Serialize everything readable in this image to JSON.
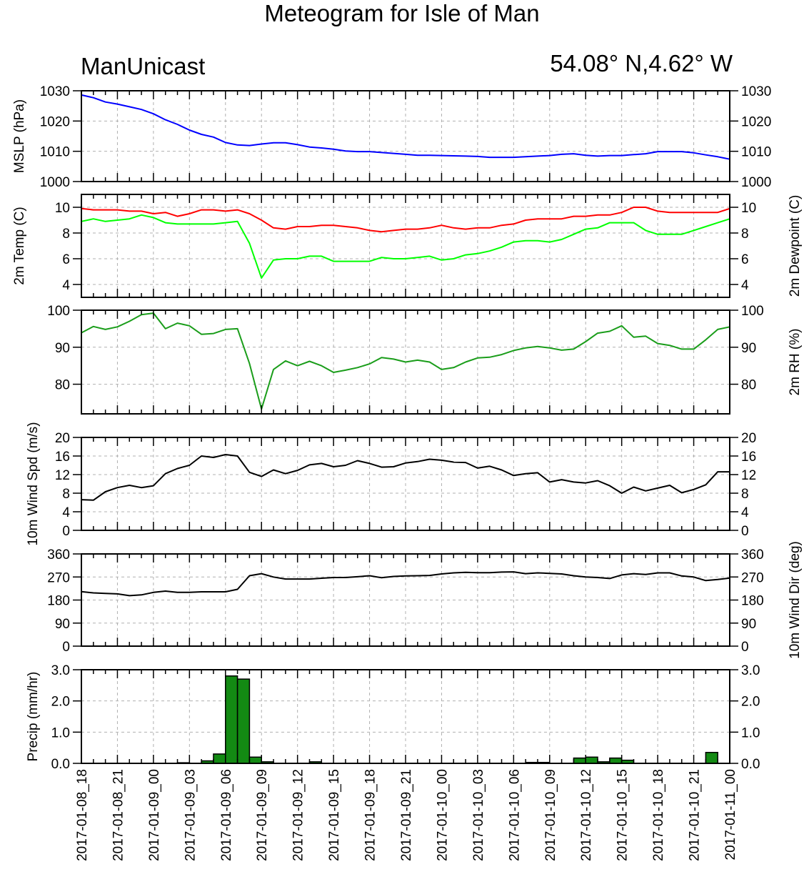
{
  "header": {
    "title": "Meteogram for Isle of Man",
    "station": "ManUnicast",
    "coordinates": "54.08° N,4.62° W"
  },
  "colors": {
    "mslp": "#0000ff",
    "temp": "#ff0000",
    "dewpoint": "#00ff00",
    "rh": "#1a9d1a",
    "wind_speed": "#000000",
    "wind_dir": "#000000",
    "precip_fill": "#138a13",
    "grid": "#b0b0b0"
  },
  "time_axis": {
    "tick_labels": [
      "2017-01-08_18",
      "2017-01-08_21",
      "2017-01-09_00",
      "2017-01-09_03",
      "2017-01-09_06",
      "2017-01-09_09",
      "2017-01-09_12",
      "2017-01-09_15",
      "2017-01-09_18",
      "2017-01-09_21",
      "2017-01-10_00",
      "2017-01-10_03",
      "2017-01-10_06",
      "2017-01-10_09",
      "2017-01-10_12",
      "2017-01-10_15",
      "2017-01-10_18",
      "2017-01-10_21",
      "2017-01-11_00"
    ],
    "x_range_hours": [
      0,
      54
    ]
  },
  "chart_data": [
    {
      "type": "line",
      "ylabel_left": "MSLP (hPa)",
      "ylim": [
        1000,
        1030
      ],
      "yticks": [
        1000,
        1010,
        1020,
        1030
      ],
      "ytick_labels": [
        "1000",
        "1010",
        "1020",
        "1030"
      ],
      "grid": true,
      "series": [
        {
          "color_key": "mslp",
          "x": [
            0,
            1,
            2,
            3,
            4,
            5,
            6,
            7,
            8,
            9,
            10,
            11,
            12,
            13,
            14,
            15,
            16,
            17,
            18,
            19,
            20,
            21,
            22,
            23,
            24,
            25,
            26,
            27,
            28,
            29,
            30,
            31,
            32,
            33,
            34,
            35,
            36,
            37,
            38,
            39,
            40,
            41,
            42,
            43,
            44,
            45,
            46,
            47,
            48,
            49,
            50,
            51,
            52,
            53,
            54
          ],
          "values": [
            1028.6,
            1027.7,
            1026.3,
            1025.6,
            1024.7,
            1023.8,
            1022.4,
            1020.4,
            1018.9,
            1017.0,
            1015.6,
            1014.7,
            1012.9,
            1012.1,
            1011.9,
            1012.4,
            1012.8,
            1012.8,
            1012.2,
            1011.4,
            1011.1,
            1010.7,
            1010.1,
            1009.9,
            1009.9,
            1009.6,
            1009.3,
            1009.0,
            1008.7,
            1008.7,
            1008.6,
            1008.5,
            1008.4,
            1008.3,
            1008.0,
            1008.0,
            1008.0,
            1008.2,
            1008.4,
            1008.6,
            1009.0,
            1009.2,
            1008.7,
            1008.4,
            1008.6,
            1008.6,
            1008.9,
            1009.2,
            1009.9,
            1009.9,
            1009.9,
            1009.5,
            1008.8,
            1008.2,
            1007.4
          ]
        }
      ]
    },
    {
      "type": "line",
      "ylabel_left": "2m Temp (C)",
      "ylabel_right": "2m Dewpoint (C)",
      "ylim": [
        3,
        11
      ],
      "yticks": [
        4,
        6,
        8,
        10
      ],
      "ytick_labels": [
        "4",
        "6",
        "8",
        "10"
      ],
      "grid": true,
      "series": [
        {
          "color_key": "temp",
          "x": [
            0,
            1,
            2,
            3,
            4,
            5,
            6,
            7,
            8,
            9,
            10,
            11,
            12,
            13,
            14,
            15,
            16,
            17,
            18,
            19,
            20,
            21,
            22,
            23,
            24,
            25,
            26,
            27,
            28,
            29,
            30,
            31,
            32,
            33,
            34,
            35,
            36,
            37,
            38,
            39,
            40,
            41,
            42,
            43,
            44,
            45,
            46,
            47,
            48,
            49,
            50,
            51,
            52,
            53,
            54
          ],
          "values": [
            9.9,
            9.8,
            9.8,
            9.8,
            9.7,
            9.7,
            9.5,
            9.6,
            9.3,
            9.5,
            9.8,
            9.8,
            9.7,
            9.8,
            9.5,
            9.0,
            8.4,
            8.3,
            8.5,
            8.5,
            8.6,
            8.6,
            8.5,
            8.4,
            8.2,
            8.1,
            8.2,
            8.3,
            8.3,
            8.4,
            8.6,
            8.4,
            8.3,
            8.4,
            8.4,
            8.6,
            8.7,
            9.0,
            9.1,
            9.1,
            9.1,
            9.3,
            9.3,
            9.4,
            9.4,
            9.6,
            10.0,
            10.0,
            9.7,
            9.6,
            9.6,
            9.6,
            9.6,
            9.6,
            9.9
          ]
        },
        {
          "color_key": "dewpoint",
          "x": [
            0,
            1,
            2,
            3,
            4,
            5,
            6,
            7,
            8,
            9,
            10,
            11,
            12,
            13,
            14,
            15,
            16,
            17,
            18,
            19,
            20,
            21,
            22,
            23,
            24,
            25,
            26,
            27,
            28,
            29,
            30,
            31,
            32,
            33,
            34,
            35,
            36,
            37,
            38,
            39,
            40,
            41,
            42,
            43,
            44,
            45,
            46,
            47,
            48,
            49,
            50,
            51,
            52,
            53,
            54
          ],
          "values": [
            8.9,
            9.1,
            8.9,
            9.0,
            9.1,
            9.4,
            9.2,
            8.8,
            8.7,
            8.7,
            8.7,
            8.7,
            8.8,
            8.9,
            7.2,
            4.5,
            5.9,
            6.0,
            6.0,
            6.2,
            6.2,
            5.8,
            5.8,
            5.8,
            5.8,
            6.1,
            6.0,
            6.0,
            6.1,
            6.2,
            5.9,
            6.0,
            6.3,
            6.4,
            6.6,
            6.9,
            7.3,
            7.4,
            7.4,
            7.3,
            7.5,
            7.9,
            8.3,
            8.4,
            8.8,
            8.8,
            8.8,
            8.2,
            7.9,
            7.9,
            7.9,
            8.2,
            8.5,
            8.8,
            9.1
          ]
        }
      ]
    },
    {
      "type": "line",
      "ylabel_right": "2m RH (%)",
      "ylim": [
        72,
        100
      ],
      "yticks": [
        80,
        90,
        100
      ],
      "ytick_labels": [
        "80",
        "90",
        "100"
      ],
      "grid": true,
      "series": [
        {
          "color_key": "rh",
          "x": [
            0,
            1,
            2,
            3,
            4,
            5,
            6,
            7,
            8,
            9,
            10,
            11,
            12,
            13,
            14,
            15,
            16,
            17,
            18,
            19,
            20,
            21,
            22,
            23,
            24,
            25,
            26,
            27,
            28,
            29,
            30,
            31,
            32,
            33,
            34,
            35,
            36,
            37,
            38,
            39,
            40,
            41,
            42,
            43,
            44,
            45,
            46,
            47,
            48,
            49,
            50,
            51,
            52,
            53,
            54
          ],
          "values": [
            93.9,
            95.6,
            94.8,
            95.5,
            97.0,
            98.8,
            99.2,
            95.0,
            96.5,
            95.8,
            93.5,
            93.7,
            94.8,
            95.0,
            85.6,
            73.3,
            84.0,
            86.3,
            85.0,
            86.2,
            85.0,
            83.2,
            83.8,
            84.5,
            85.5,
            87.2,
            86.8,
            86.0,
            86.5,
            86.0,
            84.0,
            84.5,
            86.0,
            87.1,
            87.3,
            88.0,
            89.1,
            89.8,
            90.2,
            89.8,
            89.2,
            89.5,
            91.5,
            93.8,
            94.3,
            95.8,
            92.7,
            93.0,
            91.0,
            90.5,
            89.5,
            89.5,
            92.0,
            94.8,
            95.5
          ]
        }
      ]
    },
    {
      "type": "line",
      "ylabel_left": "10m Wind Spd (m/s)",
      "ylim": [
        0,
        20
      ],
      "yticks": [
        0,
        4,
        8,
        12,
        16,
        20
      ],
      "ytick_labels": [
        "0",
        "4",
        "8",
        "12",
        "16",
        "20"
      ],
      "grid": true,
      "series": [
        {
          "color_key": "wind_speed",
          "x": [
            0,
            1,
            2,
            3,
            4,
            5,
            6,
            7,
            8,
            9,
            10,
            11,
            12,
            13,
            14,
            15,
            16,
            17,
            18,
            19,
            20,
            21,
            22,
            23,
            24,
            25,
            26,
            27,
            28,
            29,
            30,
            31,
            32,
            33,
            34,
            35,
            36,
            37,
            38,
            39,
            40,
            41,
            42,
            43,
            44,
            45,
            46,
            47,
            48,
            49,
            50,
            51,
            52,
            53,
            54
          ],
          "values": [
            6.6,
            6.5,
            8.3,
            9.2,
            9.7,
            9.2,
            9.6,
            12.2,
            13.3,
            14.0,
            16.0,
            15.7,
            16.3,
            16.0,
            12.5,
            11.6,
            13.0,
            12.2,
            12.9,
            14.1,
            14.4,
            13.7,
            14.0,
            15.0,
            14.4,
            13.6,
            13.7,
            14.5,
            14.8,
            15.3,
            15.1,
            14.7,
            14.6,
            13.4,
            13.8,
            13.0,
            11.8,
            12.2,
            12.4,
            10.4,
            10.9,
            10.4,
            10.2,
            10.7,
            9.6,
            8.0,
            9.3,
            8.5,
            9.1,
            9.7,
            8.1,
            8.8,
            9.8,
            12.6,
            12.6
          ]
        }
      ]
    },
    {
      "type": "line",
      "ylabel_right": "10m Wind Dir (deg)",
      "ylim": [
        0,
        360
      ],
      "yticks": [
        0,
        90,
        180,
        270,
        360
      ],
      "ytick_labels": [
        "0",
        "90",
        "180",
        "270",
        "360"
      ],
      "grid": true,
      "series": [
        {
          "color_key": "wind_dir",
          "x": [
            0,
            1,
            2,
            3,
            4,
            5,
            6,
            7,
            8,
            9,
            10,
            11,
            12,
            13,
            14,
            15,
            16,
            17,
            18,
            19,
            20,
            21,
            22,
            23,
            24,
            25,
            26,
            27,
            28,
            29,
            30,
            31,
            32,
            33,
            34,
            35,
            36,
            37,
            38,
            39,
            40,
            41,
            42,
            43,
            44,
            45,
            46,
            47,
            48,
            49,
            50,
            51,
            52,
            53,
            54
          ],
          "values": [
            213,
            208,
            206,
            204,
            197,
            200,
            210,
            215,
            210,
            210,
            212,
            212,
            212,
            222,
            275,
            283,
            270,
            262,
            262,
            262,
            265,
            268,
            268,
            271,
            275,
            267,
            272,
            274,
            275,
            276,
            282,
            286,
            288,
            287,
            287,
            289,
            290,
            283,
            286,
            284,
            282,
            275,
            270,
            268,
            264,
            278,
            283,
            280,
            286,
            286,
            274,
            270,
            256,
            260,
            266
          ]
        }
      ]
    },
    {
      "type": "bar",
      "ylabel_left": "Precip (mm/hr)",
      "ylim": [
        0,
        3
      ],
      "yticks": [
        0,
        1,
        2,
        3
      ],
      "ytick_labels": [
        "0.0",
        "1.0",
        "2.0",
        "3.0"
      ],
      "grid": true,
      "x": [
        0,
        1,
        2,
        3,
        4,
        5,
        6,
        7,
        8,
        9,
        10,
        11,
        12,
        13,
        14,
        15,
        16,
        17,
        18,
        19,
        20,
        21,
        22,
        23,
        24,
        25,
        26,
        27,
        28,
        29,
        30,
        31,
        32,
        33,
        34,
        35,
        36,
        37,
        38,
        39,
        40,
        41,
        42,
        43,
        44,
        45,
        46,
        47,
        48,
        49,
        50,
        51,
        52,
        53
      ],
      "values": [
        0,
        0,
        0,
        0,
        0,
        0,
        0,
        0,
        0.02,
        0,
        0.08,
        0.3,
        2.8,
        2.7,
        0.2,
        0.05,
        0,
        0,
        0,
        0.05,
        0,
        0,
        0,
        0,
        0,
        0,
        0,
        0,
        0,
        0,
        0,
        0,
        0,
        0,
        0,
        0,
        0,
        0.03,
        0.03,
        0,
        0,
        0.17,
        0.2,
        0.05,
        0.17,
        0.1,
        0,
        0,
        0,
        0,
        0,
        0,
        0.35,
        0
      ]
    }
  ]
}
